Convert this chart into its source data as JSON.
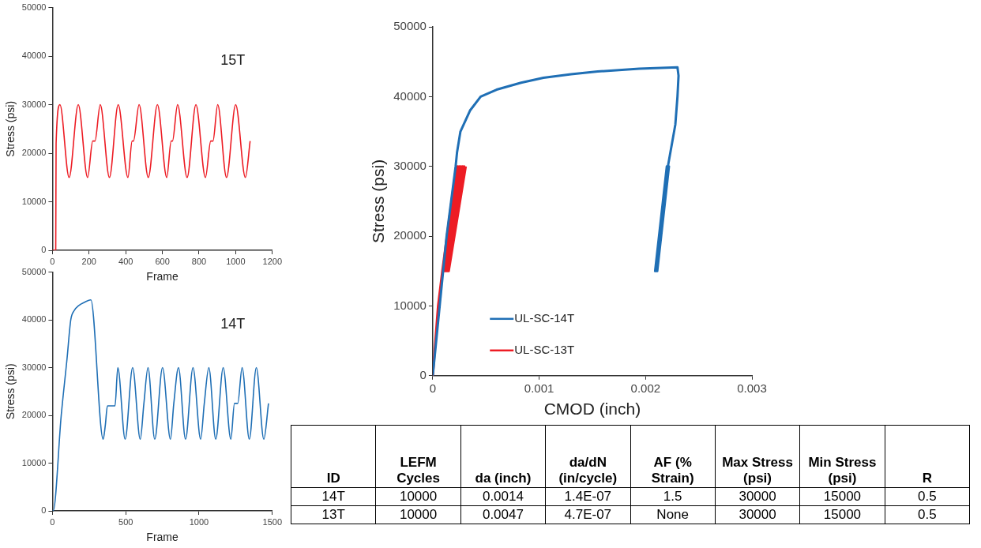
{
  "chart_data": [
    {
      "type": "line",
      "xlabel": "Frame",
      "ylabel": "Stress (psi)",
      "annotations": [
        "15T"
      ],
      "xlim": [
        0,
        1200
      ],
      "xticks": [
        0,
        200,
        400,
        600,
        800,
        1000,
        1200
      ],
      "ylim": [
        0,
        50000
      ],
      "yticks": [
        0,
        10000,
        20000,
        30000,
        40000,
        50000
      ],
      "grid": false,
      "legend": false,
      "series": [
        {
          "color": "#ed1c24",
          "x": [
            0,
            18,
            20,
            41,
            91,
            141,
            192,
            220,
            232,
            261,
            311,
            359,
            412,
            435,
            442,
            473,
            523,
            573,
            624,
            648,
            655,
            683,
            735,
            783,
            835,
            864,
            876,
            902,
            950,
            1000,
            1053,
            1079
          ],
          "values": [
            0,
            0,
            22000,
            30000,
            15000,
            30000,
            15000,
            22500,
            22500,
            30000,
            15000,
            30000,
            15000,
            22500,
            22500,
            30000,
            15000,
            30000,
            15000,
            22500,
            22500,
            30000,
            15000,
            30000,
            15000,
            22500,
            22500,
            30000,
            15000,
            30000,
            15000,
            22500
          ]
        }
      ]
    },
    {
      "type": "line",
      "xlabel": "Frame",
      "ylabel": "Stress (psi)",
      "annotations": [
        "14T"
      ],
      "xlim": [
        0,
        1500
      ],
      "xticks": [
        0,
        500,
        1000,
        1500
      ],
      "ylim": [
        0,
        50000
      ],
      "yticks": [
        0,
        10000,
        20000,
        30000,
        40000,
        50000
      ],
      "grid": false,
      "legend": false,
      "series": [
        {
          "color": "#1f6fb5",
          "x": [
            0,
            5,
            60,
            100,
            125,
            150,
            180,
            220,
            262,
            346,
            361,
            375,
            427,
            446,
            496,
            547,
            599,
            624,
            652,
            698,
            751,
            805,
            828,
            860,
            908,
            959,
            1011,
            1036,
            1067,
            1114,
            1165,
            1217,
            1242,
            1264,
            1294,
            1343,
            1391,
            1442,
            1474
          ],
          "values": [
            0,
            0,
            20000,
            32000,
            40000,
            42000,
            43000,
            43700,
            44200,
            15000,
            18000,
            22000,
            22000,
            30000,
            15000,
            30000,
            15000,
            22500,
            30000,
            15000,
            30000,
            15000,
            22500,
            30000,
            15000,
            30000,
            15000,
            22500,
            30000,
            15000,
            30000,
            15000,
            22500,
            22500,
            30000,
            15000,
            30000,
            15000,
            22500
          ]
        }
      ]
    },
    {
      "type": "line",
      "xlabel": "CMOD (inch)",
      "ylabel": "Stress (psi)",
      "xlim": [
        0,
        0.003
      ],
      "xticks": [
        0,
        0.001,
        0.002,
        0.003
      ],
      "ylim": [
        0,
        50000
      ],
      "yticks": [
        0,
        10000,
        20000,
        30000,
        40000,
        50000
      ],
      "grid": false,
      "legend": "bottom",
      "series": [
        {
          "name": "UL-SC-14T",
          "color": "#1f6fb5",
          "x": [
            0,
            6.5e-05,
            0.00013,
            0.000215,
            0.000228,
            0.00026,
            0.00035,
            0.00045,
            0.0006,
            0.00083,
            0.00104,
            0.0013,
            0.00155,
            0.00194,
            0.0023,
            0.00231,
            0.0023,
            0.00228,
            0.00221,
            0.00215,
            0.00209,
            0.0022,
            0.0021,
            0.00221,
            0.00211,
            0.00222,
            0.0021
          ],
          "values": [
            0,
            10000,
            20000,
            30000,
            32000,
            35000,
            38000,
            40000,
            41000,
            42000,
            42700,
            43200,
            43600,
            44000,
            44200,
            43000,
            40000,
            36000,
            30000,
            22000,
            15000,
            30000,
            15000,
            30000,
            15000,
            30000,
            15000
          ]
        },
        {
          "name": "UL-SC-13T",
          "color": "#ed1c24",
          "x": [
            0,
            5e-05,
            9e-05,
            0.00022,
            0.0001,
            0.000235,
            0.00011,
            0.00025,
            0.00012,
            0.000265,
            0.00013,
            0.00028,
            0.00014,
            0.000295,
            0.00015,
            0.00031
          ],
          "values": [
            0,
            10000,
            15000,
            30000,
            15000,
            30000,
            15000,
            30000,
            15000,
            30000,
            15000,
            30000,
            15000,
            30000,
            15000,
            30000
          ]
        }
      ]
    },
    {
      "type": "other",
      "categories": [
        "ID",
        "LEFM Cycles",
        "da (inch)",
        "da/dN (in/cycle)",
        "AF (% Strain)",
        "Max Stress (psi)",
        "Min Stress (psi)",
        "R"
      ],
      "cell_labels": [
        [
          "14T",
          "10000",
          "0.0014",
          "1.4E-07",
          "1.5",
          "30000",
          "15000",
          "0.5"
        ],
        [
          "13T",
          "10000",
          "0.0047",
          "4.7E-07",
          "None",
          "30000",
          "15000",
          "0.5"
        ]
      ]
    }
  ]
}
